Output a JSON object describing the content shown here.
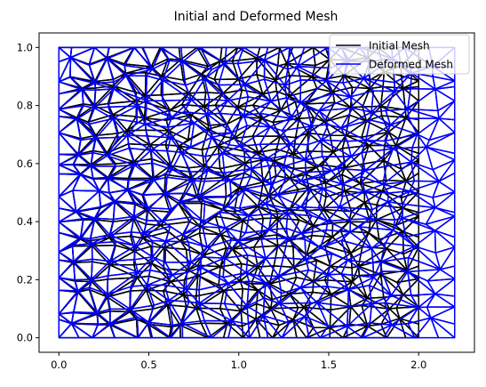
{
  "chart_data": {
    "type": "line",
    "title": "Initial and Deformed Mesh",
    "xlabel": "",
    "ylabel": "",
    "xlim": [
      -0.11,
      2.31
    ],
    "ylim": [
      -0.05,
      1.05
    ],
    "x_ticks": [
      "0.0",
      "0.5",
      "1.0",
      "1.5",
      "2.0"
    ],
    "x_tick_values": [
      0.0,
      0.5,
      1.0,
      1.5,
      2.0
    ],
    "y_ticks": [
      "0.0",
      "0.2",
      "0.4",
      "0.6",
      "0.8",
      "1.0"
    ],
    "y_tick_values": [
      0.0,
      0.2,
      0.4,
      0.6,
      0.8,
      1.0
    ],
    "grid": false,
    "legend_position": "top-right",
    "mesh": {
      "domain_x": [
        0.0,
        2.0
      ],
      "domain_y": [
        0.0,
        1.0
      ],
      "nodes_x": 21,
      "nodes_y": 21,
      "element": "triangle"
    },
    "series": [
      {
        "name": "Initial Mesh",
        "color": "#000000",
        "x_range": [
          0.0,
          2.0
        ],
        "y_range": [
          0.0,
          1.0
        ]
      },
      {
        "name": "Deformed Mesh",
        "color": "#0000ff",
        "x_range": [
          0.0,
          2.2
        ],
        "y_range": [
          0.0,
          1.0
        ]
      }
    ]
  }
}
